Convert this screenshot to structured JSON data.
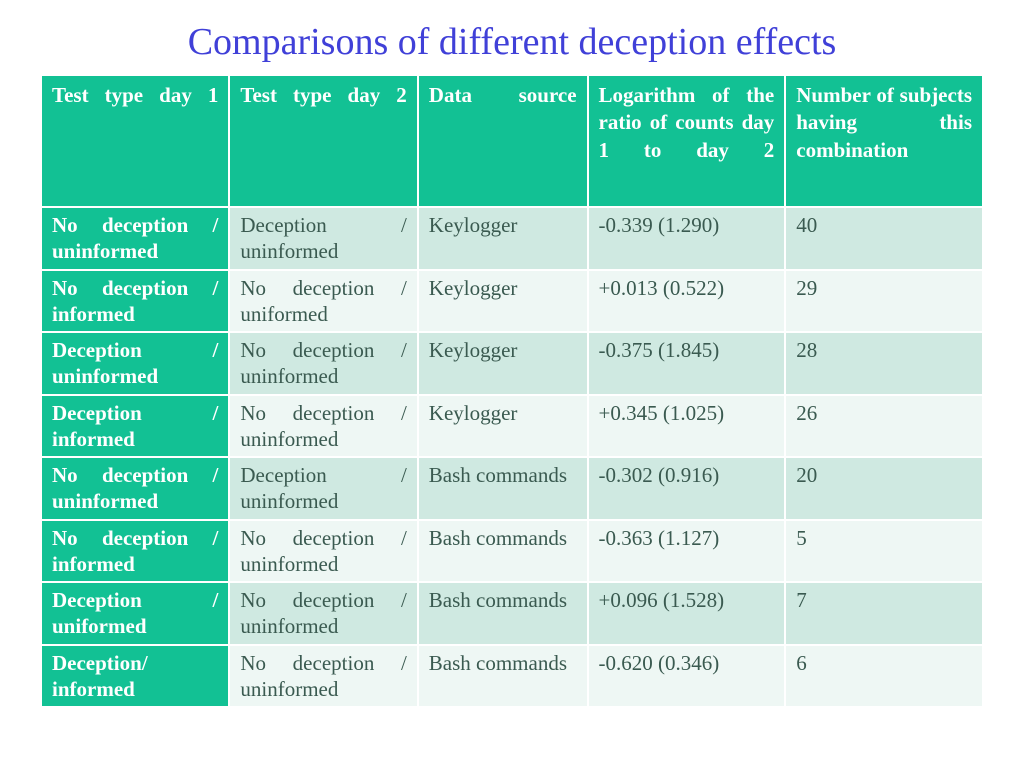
{
  "title": "Comparisons of different deception effects",
  "colors": {
    "header_bg": "#12c194",
    "header_fg": "#ffffff",
    "stripe_a": "#cfe9e1",
    "stripe_b": "#eef7f4",
    "body_text": "#3a5a50",
    "title_color": "#4040d8"
  },
  "table": {
    "columns": [
      "Test type day 1",
      "Test type day 2",
      "Data source",
      "Logarithm of the ratio of counts day 1 to day 2",
      "Number of subjects having this combination"
    ],
    "rows": [
      {
        "c0": "No deception / uninformed",
        "c1": "Deception / uninformed",
        "c2": "Keylogger",
        "c3": "-0.339 (1.290)",
        "c4": "40"
      },
      {
        "c0": "No deception / informed",
        "c1": "No deception / uniformed",
        "c2": "Keylogger",
        "c3": "+0.013 (0.522)",
        "c4": "29"
      },
      {
        "c0": "Deception / uninformed",
        "c1": "No deception / uninformed",
        "c2": "Keylogger",
        "c3": "-0.375 (1.845)",
        "c4": "28"
      },
      {
        "c0": "Deception / informed",
        "c1": "No deception / uninformed",
        "c2": "Keylogger",
        "c3": "+0.345 (1.025)",
        "c4": "26"
      },
      {
        "c0": "No deception / uninformed",
        "c1": "Deception / uninformed",
        "c2": "Bash commands",
        "c3": "-0.302 (0.916)",
        "c4": "20"
      },
      {
        "c0": "No deception / informed",
        "c1": "No deception / uninformed",
        "c2": "Bash commands",
        "c3": "-0.363 (1.127)",
        "c4": "5"
      },
      {
        "c0": "Deception / uniformed",
        "c1": "No deception / uninformed",
        "c2": "Bash commands",
        "c3": "+0.096 (1.528)",
        "c4": "7"
      },
      {
        "c0": "Deception/ informed",
        "c1": "No deception / uninformed",
        "c2": "Bash commands",
        "c3": "-0.620 (0.346)",
        "c4": "6"
      }
    ]
  }
}
